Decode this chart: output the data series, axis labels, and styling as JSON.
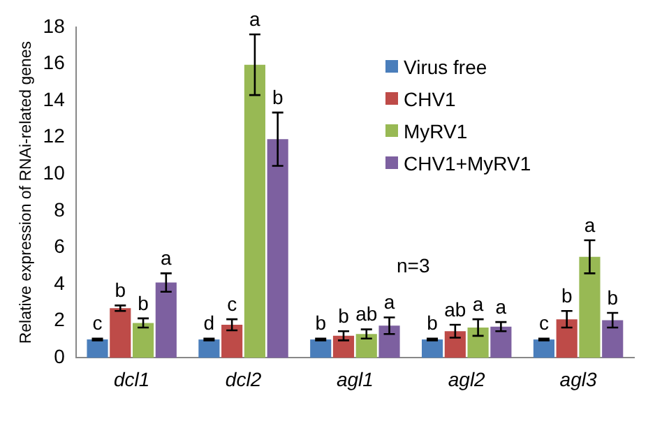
{
  "chart_data": {
    "type": "bar",
    "ylabel": "Relative expression of RNAi-related genes",
    "categories": [
      "dcl1",
      "dcl2",
      "agl1",
      "agl2",
      "agl3"
    ],
    "series": [
      {
        "name": "Virus free",
        "color": "#4a7ebb",
        "values": [
          1,
          1,
          1,
          1,
          1
        ],
        "errors": [
          0.05,
          0.05,
          0.05,
          0.05,
          0.05
        ],
        "value_labels": [
          "c",
          "d",
          "b",
          "b",
          "c"
        ]
      },
      {
        "name": "CHV1",
        "color": "#be4b48",
        "values": [
          2.7,
          1.8,
          1.2,
          1.45,
          2.1
        ],
        "errors": [
          0.15,
          0.3,
          0.25,
          0.35,
          0.45
        ],
        "value_labels": [
          "b",
          "c",
          "b",
          "ab",
          "b"
        ]
      },
      {
        "name": "MyRV1",
        "color": "#98b954",
        "values": [
          1.9,
          15.95,
          1.3,
          1.65,
          5.5
        ],
        "errors": [
          0.25,
          1.65,
          0.25,
          0.45,
          0.9
        ],
        "value_labels": [
          "b",
          "a",
          "ab",
          "a",
          "a"
        ]
      },
      {
        "name": "CHV1+MyRV1",
        "color": "#7d60a0",
        "values": [
          4.1,
          11.9,
          1.75,
          1.7,
          2.05
        ],
        "errors": [
          0.5,
          1.45,
          0.45,
          0.25,
          0.4
        ],
        "value_labels": [
          "a",
          "b",
          "a",
          "a",
          "b"
        ]
      }
    ],
    "ylim": [
      0,
      18
    ],
    "yticks": [
      0,
      2,
      4,
      6,
      8,
      10,
      12,
      14,
      16,
      18
    ],
    "grid": false,
    "legend": "top right",
    "annotations": [
      "n=3"
    ]
  }
}
